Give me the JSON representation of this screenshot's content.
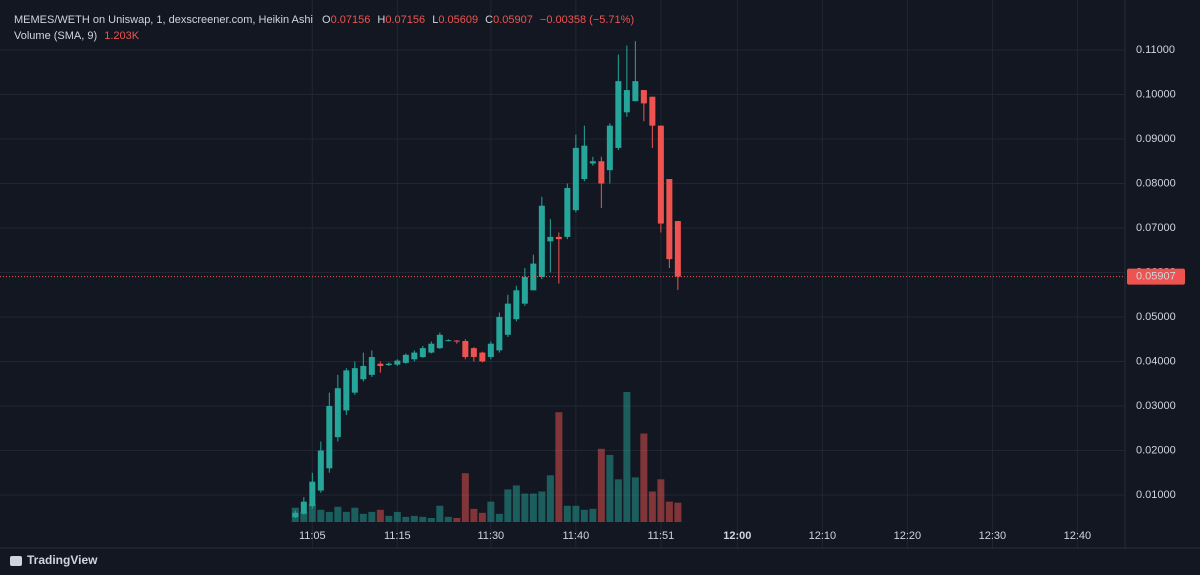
{
  "chart_data": {
    "type": "candlestick",
    "title": "MEMES/WETH on Uniswap, 1, dexscreener.com, Heikin Ashi",
    "ohlc_labels": [
      "O",
      "H",
      "L",
      "C"
    ],
    "change_label": "−0.00358 (−5.71%)",
    "up_color": "#26a69a",
    "down_color": "#ef5350",
    "volume_up_color": "rgba(38,166,154,0.5)",
    "volume_down_color": "rgba(239,83,80,0.5)",
    "open": [
      0.005,
      0.0058,
      0.0075,
      0.011,
      0.016,
      0.023,
      0.029,
      0.033,
      0.036,
      0.037,
      0.0395,
      0.0392,
      0.0393,
      0.0397,
      0.0405,
      0.041,
      0.042,
      0.043,
      0.0447,
      0.0447,
      0.0446,
      0.043,
      0.042,
      0.041,
      0.0425,
      0.046,
      0.0495,
      0.053,
      0.056,
      0.059,
      0.067,
      0.068,
      0.068,
      0.074,
      0.081,
      0.0845,
      0.085,
      0.083,
      0.088,
      0.096,
      0.0985,
      0.101,
      0.0995,
      0.093,
      0.081,
      0.07156
    ],
    "high": [
      0.0065,
      0.0095,
      0.015,
      0.022,
      0.033,
      0.037,
      0.0385,
      0.04,
      0.042,
      0.0425,
      0.04,
      0.0398,
      0.0405,
      0.0418,
      0.0425,
      0.0435,
      0.0445,
      0.0465,
      0.045,
      0.0448,
      0.045,
      0.0432,
      0.0422,
      0.0445,
      0.051,
      0.055,
      0.057,
      0.061,
      0.064,
      0.077,
      0.072,
      0.069,
      0.08,
      0.091,
      0.093,
      0.086,
      0.086,
      0.0935,
      0.109,
      0.111,
      0.112,
      0.101,
      0.0995,
      0.093,
      0.081,
      0.07156
    ],
    "low": [
      0.0048,
      0.0055,
      0.007,
      0.0105,
      0.015,
      0.022,
      0.028,
      0.0325,
      0.0355,
      0.0365,
      0.0375,
      0.039,
      0.039,
      0.0395,
      0.04,
      0.0408,
      0.0418,
      0.0428,
      0.0445,
      0.044,
      0.0405,
      0.04,
      0.0398,
      0.0405,
      0.042,
      0.0455,
      0.049,
      0.0525,
      0.056,
      0.0585,
      0.06,
      0.0575,
      0.0675,
      0.0735,
      0.0805,
      0.084,
      0.0745,
      0.08,
      0.0875,
      0.095,
      0.0985,
      0.094,
      0.088,
      0.069,
      0.061,
      0.05609
    ],
    "close": [
      0.006,
      0.0085,
      0.013,
      0.02,
      0.03,
      0.034,
      0.038,
      0.0385,
      0.039,
      0.041,
      0.039,
      0.0395,
      0.0402,
      0.0415,
      0.042,
      0.043,
      0.044,
      0.046,
      0.0448,
      0.0445,
      0.041,
      0.041,
      0.04,
      0.044,
      0.05,
      0.053,
      0.056,
      0.059,
      0.062,
      0.075,
      0.068,
      0.0675,
      0.079,
      0.088,
      0.0885,
      0.085,
      0.08,
      0.093,
      0.103,
      0.101,
      0.103,
      0.098,
      0.093,
      0.071,
      0.063,
      0.05907
    ],
    "volume": {
      "name": "Volume (SMA, 9)",
      "last_label": "1.203K",
      "values": [
        890,
        630,
        1140,
        760,
        630,
        950,
        630,
        890,
        510,
        630,
        760,
        380,
        630,
        320,
        380,
        320,
        250,
        1010,
        320,
        250,
        3040,
        820,
        570,
        1270,
        510,
        2030,
        2280,
        1770,
        1770,
        1900,
        2910,
        6840,
        1010,
        1010,
        760,
        820,
        4560,
        4180,
        2660,
        8100,
        2780,
        5510,
        1900,
        2660,
        1270,
        1203
      ]
    },
    "xlim": [
      -33.8,
      97.6
    ],
    "xticks": [
      {
        "value": 2,
        "label": "11:05"
      },
      {
        "value": 12,
        "label": "11:15"
      },
      {
        "value": 23,
        "label": "11:30"
      },
      {
        "value": 33,
        "label": "11:40"
      },
      {
        "value": 43,
        "label": "11:51"
      },
      {
        "value": 52,
        "label": "12:00"
      },
      {
        "value": 62,
        "label": "12:10"
      },
      {
        "value": 72,
        "label": "12:20"
      },
      {
        "value": 82,
        "label": "12:30"
      },
      {
        "value": 92,
        "label": "12:40"
      }
    ],
    "ylim": [
      0.00393,
      0.11944
    ],
    "yticks": [
      {
        "value": 0.01,
        "label": "0.01000"
      },
      {
        "value": 0.02,
        "label": "0.02000"
      },
      {
        "value": 0.03,
        "label": "0.03000"
      },
      {
        "value": 0.04,
        "label": "0.04000"
      },
      {
        "value": 0.05,
        "label": "0.05000"
      },
      {
        "value": 0.06,
        "label": "0.06000"
      },
      {
        "value": 0.07,
        "label": "0.07000"
      },
      {
        "value": 0.08,
        "label": "0.08000"
      },
      {
        "value": 0.09,
        "label": "0.09000"
      },
      {
        "value": 0.1,
        "label": "0.10000"
      },
      {
        "value": 0.11,
        "label": "0.11000"
      }
    ],
    "grid": true,
    "brand": "TradingView"
  }
}
